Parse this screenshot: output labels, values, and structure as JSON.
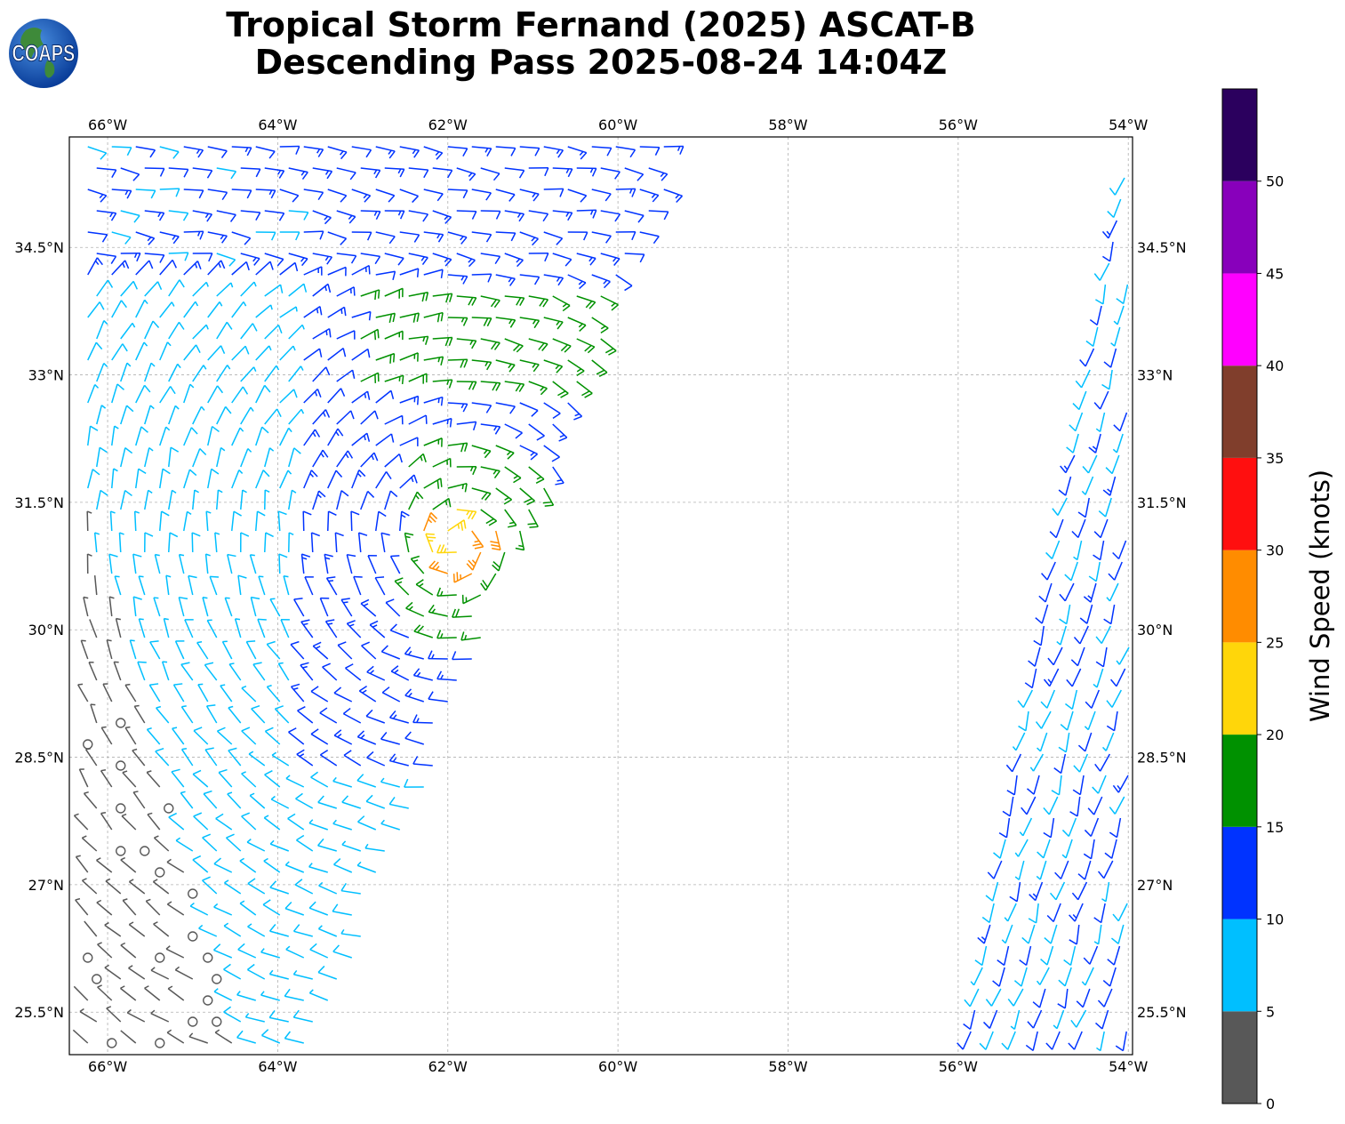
{
  "title": {
    "line1": "Tropical Storm Fernand (2025) ASCAT-B",
    "line2": "Descending Pass 2025-08-24 14:04Z"
  },
  "logo": {
    "text": "COAPS",
    "icon": "globe-logo-icon"
  },
  "map": {
    "lon_range": [
      -66.45,
      -53.95
    ],
    "lat_range": [
      25.0,
      35.8
    ],
    "lon_ticks": [
      "66°W",
      "64°W",
      "62°W",
      "60°W",
      "58°W",
      "56°W",
      "54°W"
    ],
    "lon_values": [
      -66,
      -64,
      -62,
      -60,
      -58,
      -56,
      -54
    ],
    "lat_ticks": [
      "25.5°N",
      "27°N",
      "28.5°N",
      "30°N",
      "31.5°N",
      "33°N",
      "34.5°N"
    ],
    "lat_values": [
      25.5,
      27,
      28.5,
      30,
      31.5,
      33,
      34.5
    ],
    "grid": true,
    "symbols": "wind barbs, calm winds shown as circles"
  },
  "colorbar": {
    "label": "Wind Speed (knots)",
    "ticks": [
      "0",
      "5",
      "10",
      "15",
      "20",
      "25",
      "30",
      "35",
      "40",
      "45",
      "50"
    ],
    "bins": [
      {
        "min": 0,
        "max": 5,
        "color": "#585858"
      },
      {
        "min": 5,
        "max": 10,
        "color": "#00bfff"
      },
      {
        "min": 10,
        "max": 15,
        "color": "#0033ff"
      },
      {
        "min": 15,
        "max": 20,
        "color": "#009100"
      },
      {
        "min": 20,
        "max": 25,
        "color": "#ffd60a"
      },
      {
        "min": 25,
        "max": 30,
        "color": "#ff8c00"
      },
      {
        "min": 30,
        "max": 35,
        "color": "#ff0f0f"
      },
      {
        "min": 35,
        "max": 40,
        "color": "#803e2c"
      },
      {
        "min": 40,
        "max": 45,
        "color": "#ff00ff"
      },
      {
        "min": 45,
        "max": 50,
        "color": "#8800bb"
      },
      {
        "min": 50,
        "max": 55,
        "color": "#2b005e"
      }
    ]
  }
}
